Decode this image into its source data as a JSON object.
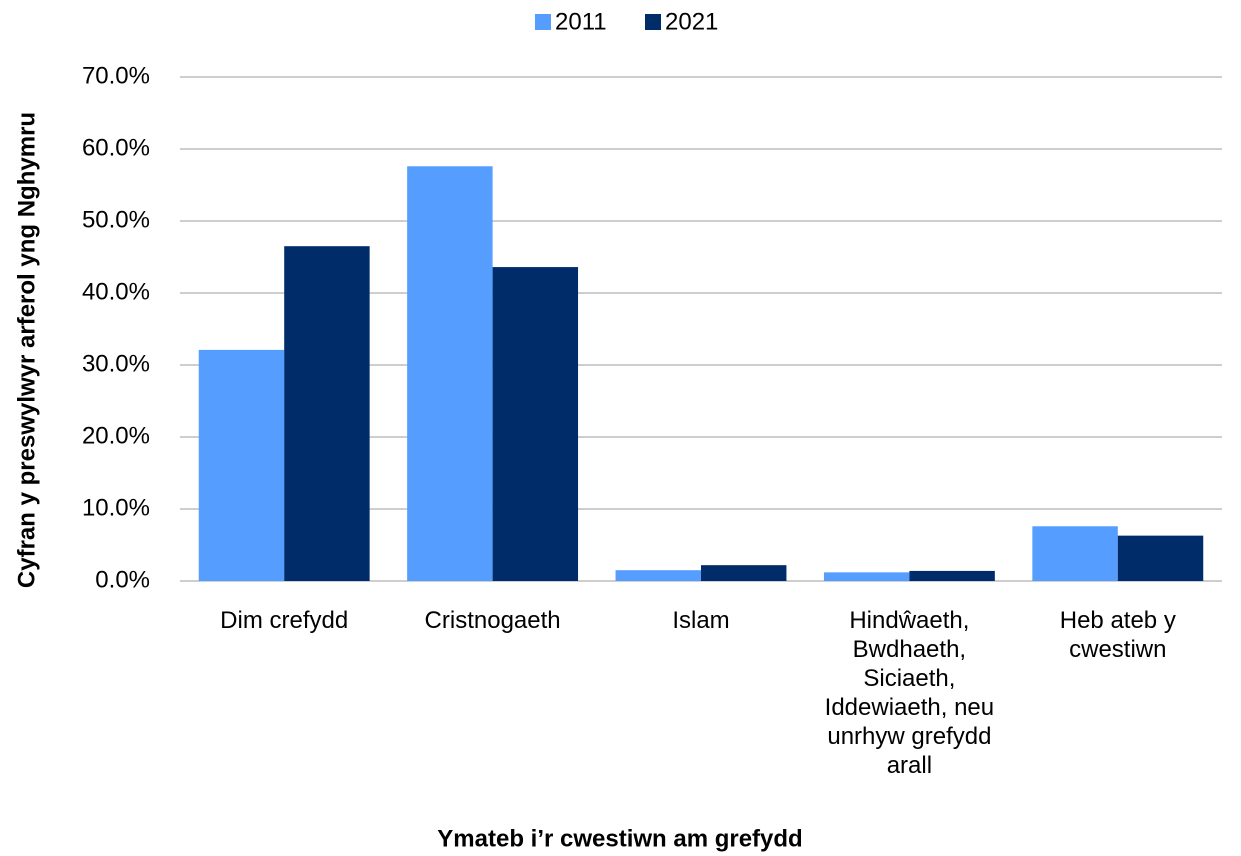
{
  "chart_data": {
    "type": "bar",
    "x_label": "Ymateb i’r cwestiwn am grefydd",
    "y_label": "Cyfran y preswylwyr arferol yng Nghymru",
    "categories": [
      "Dim crefydd",
      "Cristnogaeth",
      "Islam",
      "Hindŵaeth, Bwdhaeth, Siciaeth, Iddewiaeth, neu unrhyw grefydd arall",
      "Heb ateb y cwestiwn"
    ],
    "series": [
      {
        "name": "2011",
        "color": "#559dfe",
        "values": [
          32.1,
          57.6,
          1.5,
          1.2,
          7.6
        ]
      },
      {
        "name": "2021",
        "color": "#002d6a",
        "values": [
          46.5,
          43.6,
          2.2,
          1.4,
          6.3
        ]
      }
    ],
    "ylim": [
      0,
      70
    ],
    "yticks": [
      {
        "value": 0,
        "label": "0.0%"
      },
      {
        "value": 10,
        "label": "10.0%"
      },
      {
        "value": 20,
        "label": "20.0%"
      },
      {
        "value": 30,
        "label": "30.0%"
      },
      {
        "value": 40,
        "label": "40.0%"
      },
      {
        "value": 50,
        "label": "50.0%"
      },
      {
        "value": 60,
        "label": "60.0%"
      },
      {
        "value": 70,
        "label": "70.0%"
      }
    ],
    "grid": true,
    "legend": "top"
  }
}
